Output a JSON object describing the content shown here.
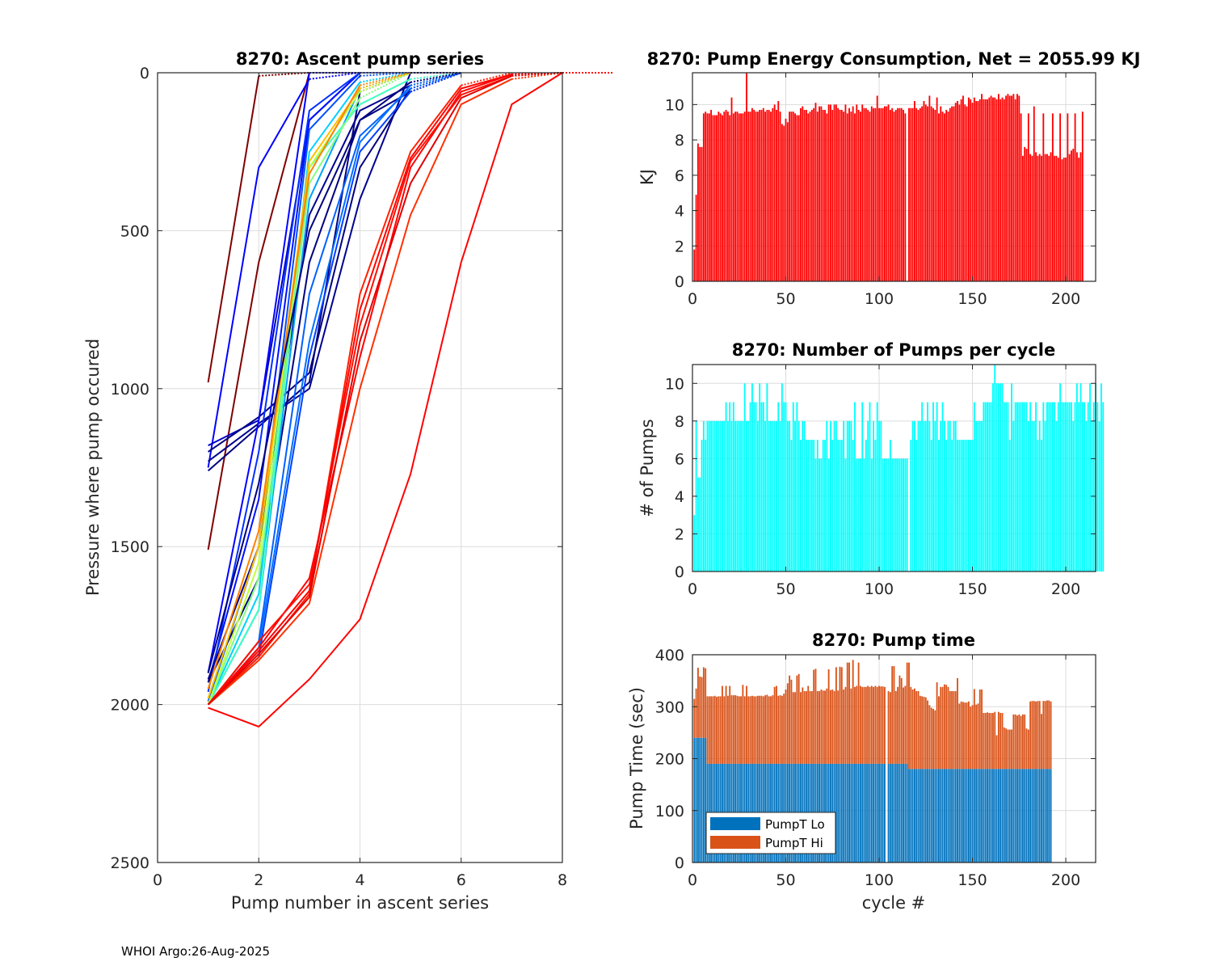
{
  "footer": "WHOI Argo:26-Aug-2025",
  "chart_data": [
    {
      "id": "ascent",
      "type": "line",
      "title": "8270: Ascent pump series",
      "xlabel": "Pump number in ascent series",
      "ylabel": "Pressure where pump occured",
      "xlim": [
        0,
        8
      ],
      "ylim": [
        0,
        2500
      ],
      "y_reversed": true,
      "grid": true,
      "xticks": [
        "0",
        "2",
        "4",
        "6",
        "8"
      ],
      "yticks": [
        "0",
        "500",
        "1000",
        "1500",
        "2000",
        "2500"
      ],
      "colormap": "jet",
      "series_note": "one line per profile cycle colored by cycle index; dotted segment to surface after last pump",
      "series": [
        {
          "color": "#7f0000",
          "x": [
            1,
            2
          ],
          "y": [
            980,
            10
          ],
          "surface": [
            0,
            120,
            2,
            5
          ]
        },
        {
          "color": "#7f0000",
          "x": [
            1,
            2,
            3
          ],
          "y": [
            1510,
            600,
            0
          ]
        },
        {
          "color": "#0000ff",
          "x": [
            1,
            2,
            3
          ],
          "y": [
            1250,
            300,
            20
          ]
        },
        {
          "color": "#0000c8",
          "x": [
            1,
            2,
            3,
            4
          ],
          "y": [
            1180,
            1100,
            150,
            0
          ]
        },
        {
          "color": "#00007f",
          "x": [
            1,
            2,
            3,
            4
          ],
          "y": [
            1260,
            1120,
            980,
            60
          ]
        },
        {
          "color": "#00008f",
          "x": [
            1,
            2,
            3,
            4,
            5
          ],
          "y": [
            1230,
            1110,
            1000,
            400,
            0
          ]
        },
        {
          "color": "#000080",
          "x": [
            1,
            2,
            3,
            4,
            5
          ],
          "y": [
            1200,
            1090,
            950,
            300,
            50
          ]
        },
        {
          "color": "#0000ff",
          "x": [
            1,
            2,
            3
          ],
          "y": [
            1900,
            1100,
            0
          ]
        },
        {
          "color": "#0010ff",
          "x": [
            1,
            2,
            3,
            4
          ],
          "y": [
            1930,
            1350,
            150,
            0
          ]
        },
        {
          "color": "#0030ff",
          "x": [
            1,
            2,
            3,
            4
          ],
          "y": [
            1960,
            1200,
            120,
            0
          ]
        },
        {
          "color": "#0050ff",
          "x": [
            1,
            2,
            3,
            4
          ],
          "y": [
            1990,
            1500,
            180,
            10
          ]
        },
        {
          "color": "#00007f",
          "x": [
            1,
            2,
            3,
            4,
            5
          ],
          "y": [
            1930,
            1600,
            600,
            150,
            60
          ]
        },
        {
          "color": "#000090",
          "x": [
            1,
            2,
            3,
            4,
            5
          ],
          "y": [
            1920,
            1500,
            450,
            120,
            40
          ]
        },
        {
          "color": "#0060ff",
          "x": [
            1,
            2,
            3,
            4,
            5
          ],
          "y": [
            2000,
            1800,
            700,
            200,
            50
          ]
        },
        {
          "color": "#00a0ff",
          "x": [
            1,
            2,
            3,
            4
          ],
          "y": [
            2000,
            1700,
            400,
            50
          ]
        },
        {
          "color": "#00d0ff",
          "x": [
            1,
            2,
            3,
            4
          ],
          "y": [
            2000,
            1650,
            250,
            30
          ]
        },
        {
          "color": "#40ffc0",
          "x": [
            1,
            2,
            3,
            4,
            5
          ],
          "y": [
            2000,
            1700,
            300,
            100,
            20
          ]
        },
        {
          "color": "#80ff80",
          "x": [
            1,
            2,
            3,
            4
          ],
          "y": [
            2000,
            1600,
            350,
            80
          ]
        },
        {
          "color": "#c0ff40",
          "x": [
            1,
            2,
            3,
            4
          ],
          "y": [
            2000,
            1550,
            300,
            60
          ]
        },
        {
          "color": "#ffc000",
          "x": [
            1,
            2,
            3,
            4
          ],
          "y": [
            1980,
            1500,
            280,
            50
          ]
        },
        {
          "color": "#ff8000",
          "x": [
            1,
            2,
            3,
            4
          ],
          "y": [
            1950,
            1450,
            320,
            40
          ]
        },
        {
          "color": "#0040ff",
          "x": [
            1,
            2,
            3,
            4,
            5
          ],
          "y": [
            2000,
            1850,
            900,
            250,
            60
          ]
        },
        {
          "color": "#0070ff",
          "x": [
            1,
            2,
            3,
            4,
            5
          ],
          "y": [
            2000,
            1820,
            850,
            220,
            40
          ]
        },
        {
          "color": "#00007f",
          "x": [
            1,
            2,
            3,
            4,
            5
          ],
          "y": [
            1900,
            1300,
            500,
            150,
            30
          ]
        },
        {
          "color": "#ff2000",
          "x": [
            1,
            2,
            3,
            4,
            5,
            6
          ],
          "y": [
            2000,
            1850,
            1650,
            700,
            250,
            40
          ]
        },
        {
          "color": "#ff0000",
          "x": [
            1,
            2,
            3,
            4,
            5,
            6,
            7
          ],
          "y": [
            2000,
            1820,
            1600,
            900,
            300,
            60,
            5
          ]
        },
        {
          "color": "#ff1000",
          "x": [
            1,
            2,
            3,
            4,
            5,
            6,
            7
          ],
          "y": [
            2000,
            1800,
            1620,
            800,
            280,
            70,
            10
          ]
        },
        {
          "color": "#ff3000",
          "x": [
            1,
            2,
            3,
            4,
            5,
            6,
            7
          ],
          "y": [
            2000,
            1860,
            1680,
            1000,
            450,
            100,
            20
          ]
        },
        {
          "color": "#ff0000",
          "x": [
            1,
            2,
            3,
            4,
            5,
            6,
            7
          ],
          "y": [
            2000,
            1830,
            1640,
            750,
            270,
            50,
            5
          ]
        },
        {
          "color": "#e00000",
          "x": [
            1,
            2,
            3,
            4,
            5,
            6,
            7
          ],
          "y": [
            2000,
            1840,
            1660,
            850,
            350,
            80,
            10
          ]
        },
        {
          "color": "#ff0000",
          "x": [
            1,
            2,
            3,
            4,
            5,
            6,
            7,
            8
          ],
          "y": [
            2010,
            2070,
            1920,
            1730,
            1270,
            600,
            100,
            0
          ]
        }
      ]
    },
    {
      "id": "energy",
      "type": "bar",
      "title": "8270: Pump Energy Consumption,  Net = 2055.99 KJ",
      "xlabel": "",
      "ylabel": "KJ",
      "xlim": [
        0,
        216
      ],
      "ylim": [
        0,
        11.8
      ],
      "grid": true,
      "xticks": [
        "0",
        "50",
        "100",
        "150",
        "200"
      ],
      "yticks": [
        "0",
        "2",
        "4",
        "6",
        "8",
        "10"
      ],
      "color": "#ff0000",
      "values": [
        1.8,
        4.9,
        7.8,
        7.6,
        7.6,
        9.5,
        9.6,
        9.5,
        9.5,
        9.7,
        9.4,
        9.4,
        9.4,
        9.6,
        9.5,
        9.4,
        9.6,
        9.7,
        9.6,
        9.4,
        10.4,
        9.5,
        9.6,
        9.6,
        9.5,
        9.5,
        9.5,
        9.6,
        11.9,
        9.6,
        9.6,
        9.8,
        9.7,
        9.6,
        9.6,
        9.7,
        9.7,
        9.8,
        9.6,
        9.7,
        9.7,
        9.6,
        9.8,
        10.0,
        9.7,
        10.2,
        9.6,
        8.9,
        8.8,
        9.2,
        9.0,
        9.6,
        9.6,
        9.6,
        9.5,
        9.4,
        9.4,
        9.8,
        9.9,
        9.7,
        9.7,
        9.5,
        9.6,
        9.7,
        9.8,
        10.1,
        9.6,
        9.9,
        9.9,
        9.7,
        9.7,
        9.5,
        10.0,
        10.0,
        9.7,
        10.0,
        10.0,
        9.8,
        9.7,
        9.7,
        9.6,
        10.0,
        9.5,
        9.8,
        9.6,
        9.9,
        9.5,
        10.0,
        9.7,
        9.6,
        10.0,
        9.8,
        9.8,
        9.7,
        9.6,
        9.9,
        9.8,
        9.8,
        10.5,
        9.8,
        9.8,
        9.8,
        9.9,
        9.9,
        10.0,
        9.7,
        9.8,
        9.6,
        9.7,
        9.8,
        9.8,
        9.8,
        9.7,
        9.5,
        0,
        9.8,
        9.8,
        9.8,
        10.2,
        9.8,
        9.7,
        9.8,
        9.9,
        10.2,
        10.0,
        9.9,
        10.5,
        9.9,
        9.8,
        9.7,
        10.4,
        9.5,
        9.9,
        9.6,
        9.5,
        9.7,
        9.6,
        9.8,
        9.9,
        9.9,
        10.1,
        10.2,
        10.0,
        10.3,
        10.5,
        10.0,
        9.9,
        10.4,
        10.3,
        10.1,
        10.4,
        10.2,
        10.2,
        10.3,
        10.6,
        10.3,
        10.3,
        10.3,
        10.4,
        10.5,
        10.4,
        10.4,
        10.3,
        10.6,
        10.3,
        10.4,
        10.3,
        10.5,
        10.6,
        10.5,
        10.5,
        10.6,
        10.3,
        10.6,
        10.5,
        9.5,
        7.1,
        7.6,
        7.5,
        9.5,
        7.2,
        7.1,
        9.9,
        7.3,
        7.1,
        7.2,
        7.1,
        9.5,
        7.2,
        7.2,
        7.1,
        7.3,
        9.5,
        7.1,
        7.1,
        7.0,
        9.5,
        6.9,
        7.0,
        7.0,
        9.5,
        7.2,
        7.4,
        7.5,
        9.5,
        7.3,
        7.0,
        7.3,
        9.6
      ]
    },
    {
      "id": "pumps",
      "type": "bar",
      "title": "8270: Number of Pumps per cycle",
      "xlabel": "",
      "ylabel": "# of Pumps",
      "xlim": [
        0,
        216
      ],
      "ylim": [
        0,
        11
      ],
      "grid": true,
      "xticks": [
        "0",
        "50",
        "100",
        "150",
        "200"
      ],
      "yticks": [
        "0",
        "2",
        "4",
        "6",
        "8",
        "10"
      ],
      "color": "#00ffff",
      "values": [
        3,
        8,
        5,
        5,
        7,
        8,
        7,
        8,
        8,
        8,
        8,
        8,
        8,
        8,
        8,
        8,
        8,
        9,
        8,
        9,
        8,
        9,
        8,
        8,
        8,
        8,
        8,
        10,
        8,
        8,
        9,
        10,
        9,
        9,
        8,
        10,
        9,
        9,
        8,
        10,
        8,
        8,
        8,
        8,
        8,
        9,
        8,
        10,
        9,
        9,
        8,
        8,
        7,
        9,
        8,
        9,
        8,
        7,
        8,
        8,
        7,
        7,
        7,
        7,
        7,
        6,
        7,
        6,
        6,
        7,
        7,
        8,
        6,
        8,
        7,
        8,
        8,
        7,
        7,
        7,
        8,
        6,
        8,
        8,
        8,
        7,
        9,
        6,
        6,
        6,
        9,
        6,
        7,
        8,
        9,
        6,
        8,
        7,
        9,
        8,
        8,
        6,
        6,
        6,
        6,
        7,
        6,
        6,
        6,
        6,
        6,
        6,
        6,
        6,
        6,
        0,
        7,
        8,
        8,
        7,
        8,
        8,
        9,
        8,
        8,
        9,
        8,
        7,
        9,
        8,
        9,
        7,
        8,
        9,
        8,
        7,
        8,
        8,
        7,
        8,
        8,
        7,
        7,
        7,
        7,
        7,
        7,
        7,
        7,
        7,
        9,
        8,
        8,
        8,
        8,
        9,
        9,
        9,
        9,
        9,
        10,
        11,
        10,
        10,
        10,
        10,
        9,
        9,
        9,
        7,
        10,
        8,
        9,
        9,
        9,
        9,
        9,
        9,
        9,
        8,
        9,
        8,
        8,
        9,
        7,
        8,
        7,
        9,
        8,
        9,
        9,
        9,
        9,
        9,
        8,
        9,
        10,
        9,
        9,
        9,
        9,
        9,
        9,
        8,
        9,
        10,
        9,
        10,
        9,
        9,
        8,
        9,
        10,
        8,
        9,
        10,
        9,
        8,
        10,
        9
      ]
    },
    {
      "id": "pumptime",
      "type": "bar",
      "stacked": true,
      "title": "8270: Pump time",
      "xlabel": "cycle #",
      "ylabel": "Pump Time (sec)",
      "xlim": [
        0,
        216
      ],
      "ylim": [
        0,
        400
      ],
      "grid": true,
      "xticks": [
        "0",
        "50",
        "100",
        "150",
        "200"
      ],
      "yticks": [
        "0",
        "100",
        "200",
        "300",
        "400"
      ],
      "legend": {
        "position": "bottom-left",
        "entries": [
          "PumpT Lo",
          "PumpT Hi"
        ]
      },
      "series": [
        {
          "name": "PumpT Lo",
          "color": "#0072bd",
          "values_pattern": {
            "cycles_0_6": 240,
            "cycles_7_114": 190,
            "cycles_116_216": 180
          }
        },
        {
          "name": "PumpT Hi (total height)",
          "color": "#d95319",
          "total_values": [
            315,
            335,
            375,
            358,
            357,
            376,
            374,
            320,
            320,
            320,
            320,
            321,
            319,
            320,
            320,
            340,
            320,
            340,
            321,
            340,
            322,
            322,
            322,
            321,
            320,
            320,
            342,
            320,
            340,
            320,
            320,
            321,
            320,
            320,
            321,
            321,
            321,
            320,
            322,
            323,
            320,
            320,
            322,
            338,
            340,
            321,
            322,
            321,
            325,
            333,
            345,
            360,
            352,
            328,
            328,
            360,
            363,
            328,
            337,
            330,
            330,
            340,
            330,
            330,
            371,
            373,
            330,
            330,
            333,
            331,
            331,
            335,
            372,
            332,
            333,
            330,
            376,
            331,
            377,
            376,
            333,
            338,
            385,
            385,
            335,
            390,
            338,
            340,
            385,
            340,
            338,
            338,
            338,
            340,
            338,
            340,
            338,
            340,
            338,
            340,
            339,
            339,
            338,
            0,
            330,
            328,
            378,
            378,
            330,
            338,
            360,
            355,
            337,
            340,
            385,
            385,
            338,
            333,
            335,
            330,
            330,
            321,
            320,
            319,
            318,
            312,
            303,
            298,
            296,
            293,
            347,
            320,
            338,
            338,
            343,
            342,
            338,
            330,
            330,
            330,
            330,
            355,
            306,
            310,
            309,
            308,
            308,
            310,
            300,
            303,
            334,
            304,
            306,
            333,
            333,
            288,
            288,
            289,
            288,
            288,
            288,
            290,
            245,
            290,
            288,
            288,
            260,
            258,
            256,
            256,
            256,
            285,
            285,
            283,
            285,
            282,
            285,
            285,
            258,
            256,
            310,
            311,
            311,
            310,
            311,
            311,
            286,
            311,
            311,
            312,
            312,
            310
          ]
        }
      ]
    }
  ]
}
